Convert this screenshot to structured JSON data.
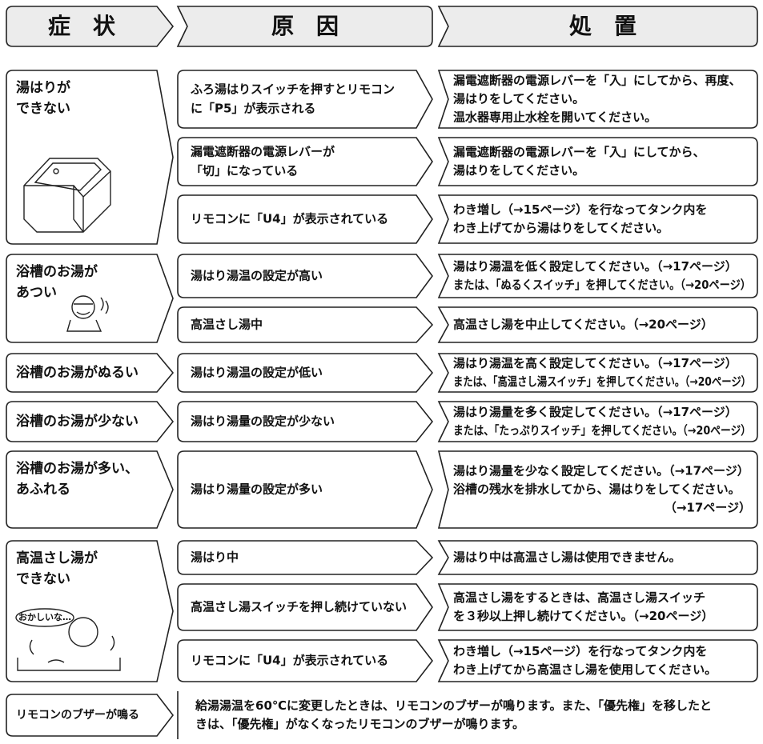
{
  "header": {
    "symptom": "症　状",
    "cause": "原　因",
    "remedy": "処　置"
  },
  "groups": [
    {
      "symptom": [
        "湯はりが",
        "できない"
      ],
      "causes": [
        {
          "cause": [
            "ふろ湯はりスイッチを押すとリモコン",
            "に「P5」が表示される"
          ],
          "remedy": [
            "漏電遮断器の電源レバーを「入」にしてから、再度、",
            "湯はりをしてください。",
            "温水器専用止水栓を開いてください。"
          ]
        },
        {
          "cause": [
            "漏電遮断器の電源レバーが",
            "「切」になっている"
          ],
          "remedy": [
            "漏電遮断器の電源レバーを「入」にしてから、",
            "湯はりをしてください。"
          ]
        },
        {
          "cause": [
            "リモコンに「U4」が表示されている"
          ],
          "remedy": [
            "わき増し（→15ページ）を行なってタンク内を",
            "わき上げてから湯はりをしてください。"
          ]
        }
      ]
    },
    {
      "symptom": [
        "浴槽のお湯が",
        "あつい"
      ],
      "causes": [
        {
          "cause": [
            "湯はり湯温の設定が高い"
          ],
          "remedy": [
            "湯はり湯温を低く設定してください。（→17ページ）",
            "または、「ぬるくスイッチ」を押してください。（→20ページ）"
          ]
        },
        {
          "cause": [
            "高温さし湯中"
          ],
          "remedy": [
            "高温さし湯を中止してください。（→20ページ）"
          ]
        }
      ]
    },
    {
      "symptom": [
        "浴槽のお湯がぬるい"
      ],
      "causes": [
        {
          "cause": [
            "湯はり湯温の設定が低い"
          ],
          "remedy": [
            "湯はり湯温を高く設定してください。（→17ページ）",
            "または、「高温さし湯スイッチ」を押してください。（→20ページ）"
          ]
        }
      ]
    },
    {
      "symptom": [
        "浴槽のお湯が少ない"
      ],
      "causes": [
        {
          "cause": [
            "湯はり湯量の設定が少ない"
          ],
          "remedy": [
            "湯はり湯量を多く設定してください。（→17ページ）",
            "または、「たっぷりスイッチ」を押してください。（→20ページ）"
          ]
        }
      ]
    },
    {
      "symptom": [
        "浴槽のお湯が多い、",
        "あふれる"
      ],
      "causes": [
        {
          "cause": [
            "湯はり湯量の設定が多い"
          ],
          "remedy": [
            "湯はり湯量を少なく設定してください。（→17ページ）",
            "浴槽の残水を排水してから、湯はりをしてください。",
            "（→17ページ）"
          ]
        }
      ]
    },
    {
      "symptom": [
        "高温さし湯が",
        "できない"
      ],
      "illustration_text": "おかしいな…",
      "causes": [
        {
          "cause": [
            "湯はり中"
          ],
          "remedy": [
            "湯はり中は高温さし湯は使用できません。"
          ]
        },
        {
          "cause": [
            "高温さし湯スイッチを押し続けていない"
          ],
          "remedy": [
            "高温さし湯をするときは、高温さし湯スイッチ",
            "を３秒以上押し続けてください。（→20ページ）"
          ]
        },
        {
          "cause": [
            "リモコンに「U4」が表示されている"
          ],
          "remedy": [
            "わき増し（→15ページ）を行なってタンク内を",
            "わき上げてから高温さし湯を使用してください。"
          ]
        }
      ]
    },
    {
      "symptom": [
        "リモコンのブザーが鳴る"
      ],
      "note": [
        "給湯湯温を60℃に変更したときは、リモコンのブザーが鳴ります。また、「優先権」を移したと",
        "きは、「優先権」がなくなったリモコンのブザーが鳴ります。"
      ]
    }
  ]
}
